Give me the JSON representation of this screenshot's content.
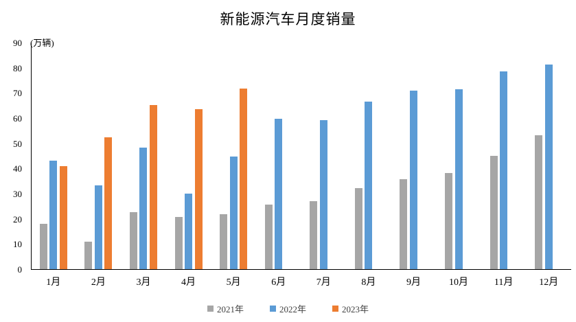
{
  "chart_data": {
    "type": "bar",
    "title": "新能源汽车月度销量",
    "unit_label": "(万辆)",
    "categories": [
      "1月",
      "2月",
      "3月",
      "4月",
      "5月",
      "6月",
      "7月",
      "8月",
      "9月",
      "10月",
      "11月",
      "12月"
    ],
    "series": [
      {
        "name": "2021年",
        "color": "#a6a6a6",
        "values": [
          17.9,
          11.0,
          22.6,
          20.6,
          21.7,
          25.6,
          27.1,
          32.1,
          35.7,
          38.3,
          45.0,
          53.1
        ]
      },
      {
        "name": "2022年",
        "color": "#5b9bd5",
        "values": [
          43.1,
          33.4,
          48.4,
          29.9,
          44.7,
          59.6,
          59.3,
          66.6,
          70.8,
          71.4,
          78.6,
          81.4
        ]
      },
      {
        "name": "2023年",
        "color": "#ed7d31",
        "values": [
          40.8,
          52.5,
          65.3,
          63.6,
          71.7,
          null,
          null,
          null,
          null,
          null,
          null,
          null
        ]
      }
    ],
    "ylim": [
      0,
      90
    ],
    "yticks": [
      0,
      10,
      20,
      30,
      40,
      50,
      60,
      70,
      80,
      90
    ],
    "ytick_step": 10,
    "xlabel": "",
    "ylabel": "(万辆)",
    "grid": false,
    "legend_position": "bottom",
    "axis_color": "#000000",
    "legend_text_color": "#404040"
  }
}
